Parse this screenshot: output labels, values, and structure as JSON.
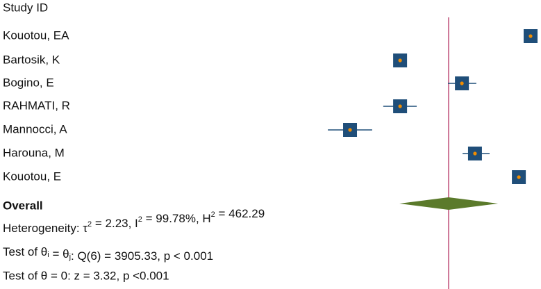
{
  "chart_data": {
    "type": "forest",
    "column_header": "Study ID",
    "xlim": [
      0,
      100
    ],
    "box_color": "#1f4e79",
    "point_color": "#f08c00",
    "diamond_color": "#5b7a2b",
    "line_color": "#c0507a",
    "studies": [
      {
        "name": "Kouotou, EA",
        "estimate": 95.3,
        "lower": 94.0,
        "upper": 96.5
      },
      {
        "name": "Bartosik, K",
        "estimate": 36.4,
        "lower": 36.1,
        "upper": 36.7
      },
      {
        "name": "Bogino, E",
        "estimate": 64.3,
        "lower": 58.0,
        "upper": 70.8
      },
      {
        "name": "RAHMATI, R",
        "estimate": 36.4,
        "lower": 28.8,
        "upper": 43.9
      },
      {
        "name": "Mannocci, A",
        "estimate": 13.8,
        "lower": 3.8,
        "upper": 23.8
      },
      {
        "name": "Harouna, M",
        "estimate": 70.2,
        "lower": 64.6,
        "upper": 76.8
      },
      {
        "name": "Kouotou, E",
        "estimate": 90.0,
        "lower": 89.3,
        "upper": 90.6
      }
    ],
    "overall": {
      "label": "Overall",
      "estimate": 58.3,
      "lower": 36.1,
      "upper": 80.6
    },
    "heterogeneity": [
      {
        "text": "Heterogeneity: τ"
      },
      {
        "sup": "2"
      },
      {
        "text": " = 2.23, I"
      },
      {
        "sup": "2"
      },
      {
        "text": " = 99.78%, H"
      },
      {
        "sup": "2"
      },
      {
        "text": " = 462.29"
      }
    ],
    "test_equal": [
      {
        "text": "Test of θ"
      },
      {
        "sub": "i"
      },
      {
        "text": " = θ"
      },
      {
        "sub": "j"
      },
      {
        "text": ": Q(6) = 3905.33, p < 0.001"
      }
    ],
    "test_zero": "Test of θ = 0: z = 3.32, p <0.001"
  }
}
